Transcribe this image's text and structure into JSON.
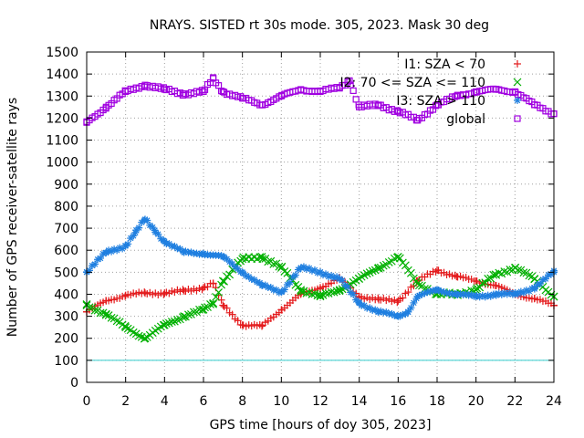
{
  "chart_data": {
    "type": "scatter",
    "title": "NRAYS. SISTED rt 30s mode. 305, 2023. Mask 30 deg",
    "xlabel": "GPS time [hours of doy 305, 2023]",
    "ylabel": "Number of GPS receiver-satellite rays",
    "xlim": [
      0,
      24
    ],
    "ylim": [
      0,
      1500
    ],
    "xticks": [
      "0",
      "2",
      "4",
      "6",
      "8",
      "10",
      "12",
      "14",
      "16",
      "18",
      "20",
      "22",
      "24"
    ],
    "yticks": [
      "0",
      "100",
      "200",
      "300",
      "400",
      "500",
      "600",
      "700",
      "800",
      "900",
      "1000",
      "1100",
      "1200",
      "1300",
      "1400",
      "1500"
    ],
    "grid": true,
    "legend_position": "top-right",
    "reference_line": {
      "value": 100,
      "color": "#33cccc"
    },
    "series": [
      {
        "name": "I1: SZA < 70",
        "marker": "+",
        "color": "#e41a1c",
        "x": [
          0,
          1,
          2,
          3,
          4,
          5,
          6,
          6.5,
          7,
          8,
          9,
          10,
          11,
          12,
          13,
          14,
          15,
          16,
          17,
          18,
          19,
          20,
          21,
          22,
          23,
          24
        ],
        "y": [
          320,
          370,
          395,
          405,
          405,
          415,
          430,
          450,
          350,
          260,
          255,
          330,
          400,
          430,
          470,
          390,
          375,
          370,
          460,
          510,
          480,
          460,
          440,
          400,
          380,
          350
        ]
      },
      {
        "name": "I2: 70 <= SZA <= 110",
        "marker": "x",
        "color": "#00b000",
        "x": [
          0,
          1,
          2,
          3,
          4,
          5,
          6,
          6.5,
          7,
          8,
          9,
          10,
          11,
          12,
          13,
          14,
          15,
          16,
          17,
          18,
          19,
          20,
          21,
          22,
          23,
          24
        ],
        "y": [
          350,
          310,
          250,
          200,
          260,
          300,
          330,
          360,
          460,
          560,
          570,
          520,
          420,
          390,
          420,
          470,
          520,
          570,
          450,
          400,
          400,
          420,
          490,
          520,
          470,
          390
        ]
      },
      {
        "name": "I3: SZA > 110",
        "marker": "*",
        "color": "#1f7fe0",
        "x": [
          0,
          1,
          2,
          2.5,
          3,
          3.5,
          4,
          5,
          6,
          7,
          8,
          9,
          10,
          11,
          12,
          13,
          14,
          15,
          16,
          16.5,
          17,
          18,
          19,
          20,
          21,
          22,
          23,
          24
        ],
        "y": [
          500,
          590,
          620,
          680,
          740,
          690,
          640,
          590,
          585,
          570,
          500,
          440,
          410,
          520,
          500,
          470,
          360,
          320,
          300,
          320,
          390,
          420,
          400,
          390,
          400,
          400,
          430,
          500
        ]
      },
      {
        "name": "global",
        "marker": "square",
        "color": "#a000e0",
        "x": [
          0,
          1,
          2,
          3,
          4,
          5,
          6,
          6.5,
          7,
          8,
          9,
          10,
          11,
          12,
          13,
          13.5,
          14,
          15,
          16,
          17,
          18,
          19,
          20,
          21,
          22,
          23,
          24
        ],
        "y": [
          1180,
          1250,
          1320,
          1350,
          1330,
          1310,
          1320,
          1380,
          1320,
          1290,
          1260,
          1300,
          1330,
          1320,
          1340,
          1370,
          1250,
          1260,
          1230,
          1190,
          1260,
          1300,
          1320,
          1330,
          1320,
          1260,
          1220
        ]
      }
    ]
  }
}
